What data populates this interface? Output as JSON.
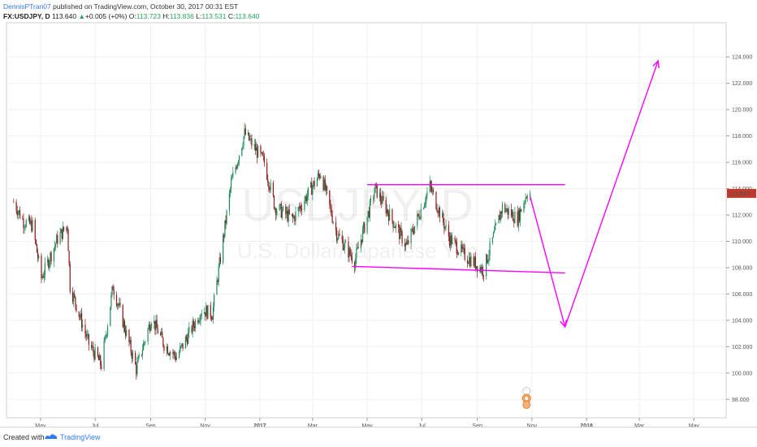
{
  "header": {
    "author": "DennisPTran07",
    "published": " published on TradingView.com, October 30, 2017 00:31 EST",
    "symbol": "FX:USDJPY, D",
    "last": "113.640",
    "change_arrow": "▲",
    "change": "+0.005 (+0%)",
    "o_label": "O:",
    "o": "113.723",
    "h_label": "H:",
    "h": "113.836",
    "l_label": "L:",
    "l": "113.531",
    "c_label": "C:",
    "c": "113.640"
  },
  "watermark": {
    "symbol": "USDJPY, D",
    "name": "U.S. Dollar/Japanese Yen"
  },
  "footer": {
    "created_with": "Created with",
    "brand": "TradingView"
  },
  "colors": {
    "up_candle": "#1d8a5a",
    "down_candle": "#8b1a1a",
    "drawing": "#ff00ff",
    "price_tag": "#c0392b",
    "brand": "#3179f5"
  },
  "chart_data": {
    "type": "candlestick",
    "instrument": "FX:USDJPY",
    "interval": "D",
    "y_ticks": [
      "124.000",
      "122.000",
      "120.000",
      "118.000",
      "116.000",
      "114.000",
      "112.000",
      "110.000",
      "108.000",
      "106.000",
      "104.000",
      "102.000",
      "100.000",
      "98.000"
    ],
    "ylim": [
      96.6,
      126.6
    ],
    "x_ticks": [
      "May",
      "Jul",
      "Sep",
      "Nov",
      "2017",
      "Mar",
      "May",
      "Jul",
      "Sep",
      "Nov",
      "2018",
      "Mar",
      "May"
    ],
    "last_price": "113.640",
    "price_path": [
      {
        "t": "2016-04-01",
        "v": 113.0
      },
      {
        "t": "2016-04-12",
        "v": 111.5
      },
      {
        "t": "2016-04-22",
        "v": 111.2
      },
      {
        "t": "2016-05-02",
        "v": 107.2
      },
      {
        "t": "2016-05-20",
        "v": 110.2
      },
      {
        "t": "2016-05-31",
        "v": 111.2
      },
      {
        "t": "2016-06-03",
        "v": 106.6
      },
      {
        "t": "2016-06-24",
        "v": 102.2
      },
      {
        "t": "2016-07-08",
        "v": 100.6
      },
      {
        "t": "2016-07-21",
        "v": 106.6
      },
      {
        "t": "2016-08-16",
        "v": 100.3
      },
      {
        "t": "2016-09-02",
        "v": 104.2
      },
      {
        "t": "2016-09-16",
        "v": 102.2
      },
      {
        "t": "2016-09-30",
        "v": 101.2
      },
      {
        "t": "2016-10-28",
        "v": 104.8
      },
      {
        "t": "2016-11-09",
        "v": 104.5
      },
      {
        "t": "2016-11-30",
        "v": 114.4
      },
      {
        "t": "2016-12-15",
        "v": 118.2
      },
      {
        "t": "2017-01-06",
        "v": 116.0
      },
      {
        "t": "2017-01-18",
        "v": 112.6
      },
      {
        "t": "2017-02-07",
        "v": 111.7
      },
      {
        "t": "2017-03-10",
        "v": 115.2
      },
      {
        "t": "2017-03-28",
        "v": 110.6
      },
      {
        "t": "2017-04-17",
        "v": 108.5
      },
      {
        "t": "2017-05-10",
        "v": 114.0
      },
      {
        "t": "2017-06-14",
        "v": 109.6
      },
      {
        "t": "2017-07-10",
        "v": 114.2
      },
      {
        "t": "2017-08-01",
        "v": 110.2
      },
      {
        "t": "2017-08-17",
        "v": 109.0
      },
      {
        "t": "2017-09-08",
        "v": 107.8
      },
      {
        "t": "2017-09-29",
        "v": 112.6
      },
      {
        "t": "2017-10-16",
        "v": 111.7
      },
      {
        "t": "2017-10-27",
        "v": 113.8
      },
      {
        "t": "2017-10-30",
        "v": 113.64
      }
    ],
    "annotations": [
      {
        "type": "trendline",
        "from": {
          "t": "2017-05-01",
          "v": 114.3
        },
        "to": {
          "t": "2017-12-08",
          "v": 114.3
        }
      },
      {
        "type": "trendline",
        "from": {
          "t": "2017-04-14",
          "v": 108.1
        },
        "to": {
          "t": "2017-12-08",
          "v": 107.6
        }
      },
      {
        "type": "arrow",
        "from": {
          "t": "2017-10-30",
          "v": 113.4
        },
        "to": {
          "t": "2017-12-08",
          "v": 103.5
        }
      },
      {
        "type": "arrow",
        "from": {
          "t": "2017-12-08",
          "v": 103.5
        },
        "to": {
          "t": "2018-03-22",
          "v": 123.7
        }
      }
    ]
  }
}
